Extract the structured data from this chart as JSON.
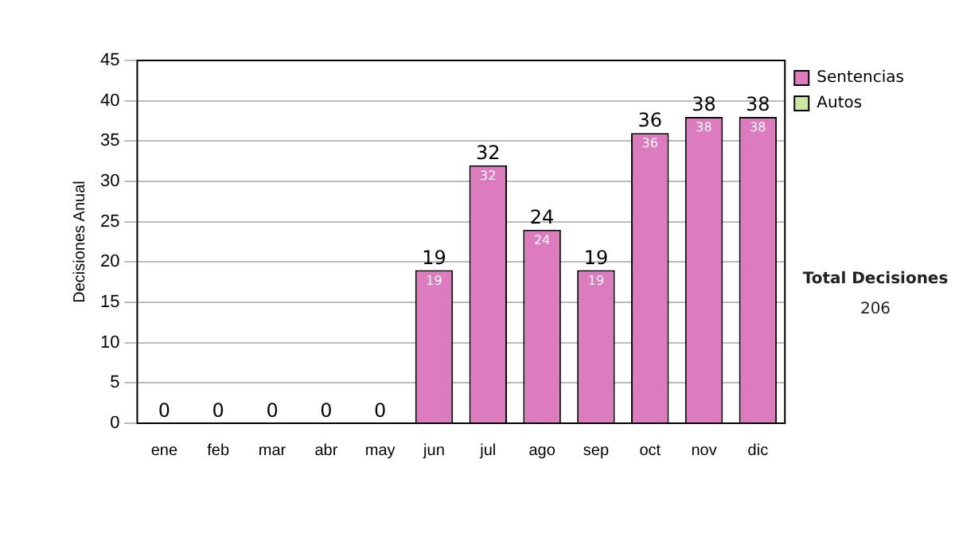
{
  "chart_data": {
    "type": "bar",
    "stacked": true,
    "ylabel": "Decisiones Anual",
    "categories": [
      "ene",
      "feb",
      "mar",
      "abr",
      "may",
      "jun",
      "jul",
      "ago",
      "sep",
      "oct",
      "nov",
      "dic"
    ],
    "series": [
      {
        "name": "Sentencias",
        "color": "#dc7cbf",
        "values": [
          0,
          0,
          0,
          0,
          0,
          19,
          32,
          24,
          19,
          36,
          38,
          38
        ],
        "value_labels": [
          null,
          null,
          null,
          null,
          null,
          "19",
          "32",
          "24",
          "19",
          "36",
          "38",
          "38"
        ]
      },
      {
        "name": "Autos",
        "color": "#cfe6a0",
        "values": [
          0,
          0,
          0,
          0,
          0,
          0,
          0,
          0,
          0,
          0,
          0,
          0
        ]
      }
    ],
    "totals": [
      "0",
      "0",
      "0",
      "0",
      "0",
      "19",
      "32",
      "24",
      "19",
      "36",
      "38",
      "38"
    ],
    "ylim": [
      0,
      45
    ],
    "yticks": [
      0,
      5,
      10,
      15,
      20,
      25,
      30,
      35,
      40,
      45
    ],
    "grid": "y",
    "legend": "right",
    "annotations": [
      "Total Decisiones",
      "206"
    ]
  }
}
